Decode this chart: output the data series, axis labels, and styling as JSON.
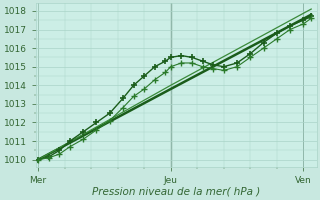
{
  "title": "",
  "xlabel": "Pression niveau de la mer( hPa )",
  "ylabel": "",
  "bg_color": "#c8e8e0",
  "plot_area_bg": "#cceee6",
  "grid_color": "#aad4c8",
  "tick_color": "#336633",
  "label_color": "#336633",
  "yticks": [
    1010,
    1011,
    1012,
    1013,
    1014,
    1015,
    1016,
    1017,
    1018
  ],
  "xtick_labels": [
    "Mer",
    "Jeu",
    "Ven"
  ],
  "xtick_positions": [
    0.0,
    0.5,
    1.0
  ],
  "ylim": [
    1009.6,
    1018.4
  ],
  "xlim": [
    -0.01,
    1.05
  ],
  "lines": [
    {
      "x": [
        0.0,
        0.04,
        0.08,
        0.12,
        0.17,
        0.22,
        0.27,
        0.32,
        0.36,
        0.4,
        0.44,
        0.48,
        0.5,
        0.54,
        0.58,
        0.62,
        0.66,
        0.7,
        0.75,
        0.8,
        0.85,
        0.9,
        0.95,
        1.0,
        1.03
      ],
      "y": [
        1010.0,
        1010.15,
        1010.5,
        1011.0,
        1011.5,
        1012.0,
        1012.5,
        1013.3,
        1014.0,
        1014.5,
        1015.0,
        1015.3,
        1015.5,
        1015.6,
        1015.5,
        1015.3,
        1015.1,
        1015.0,
        1015.2,
        1015.7,
        1016.3,
        1016.8,
        1017.2,
        1017.5,
        1017.7
      ],
      "style": "-",
      "marker": "+",
      "color": "#1a5c1a",
      "lw": 1.0,
      "ms": 4.5,
      "mew": 1.2
    },
    {
      "x": [
        0.0,
        0.04,
        0.08,
        0.12,
        0.17,
        0.22,
        0.27,
        0.32,
        0.36,
        0.4,
        0.44,
        0.48,
        0.5,
        0.54,
        0.58,
        0.62,
        0.66,
        0.7,
        0.75,
        0.8,
        0.85,
        0.9,
        0.95,
        1.0,
        1.03
      ],
      "y": [
        1010.0,
        1010.1,
        1010.3,
        1010.7,
        1011.1,
        1011.6,
        1012.1,
        1012.8,
        1013.4,
        1013.8,
        1014.3,
        1014.7,
        1015.0,
        1015.2,
        1015.2,
        1015.0,
        1014.9,
        1014.8,
        1015.0,
        1015.5,
        1016.0,
        1016.5,
        1017.0,
        1017.3,
        1017.6
      ],
      "style": "-",
      "marker": "+",
      "color": "#2a7a2a",
      "lw": 0.8,
      "ms": 4.0,
      "mew": 1.0
    },
    {
      "x": [
        0.0,
        0.5,
        1.03
      ],
      "y": [
        1010.0,
        1013.8,
        1017.8
      ],
      "style": "-",
      "marker": null,
      "color": "#1a5c1a",
      "lw": 1.8,
      "ms": 0,
      "mew": 0
    },
    {
      "x": [
        0.0,
        0.5,
        1.03
      ],
      "y": [
        1010.0,
        1014.0,
        1018.1
      ],
      "style": "-",
      "marker": null,
      "color": "#3a8a3a",
      "lw": 0.9,
      "ms": 0,
      "mew": 0
    }
  ]
}
